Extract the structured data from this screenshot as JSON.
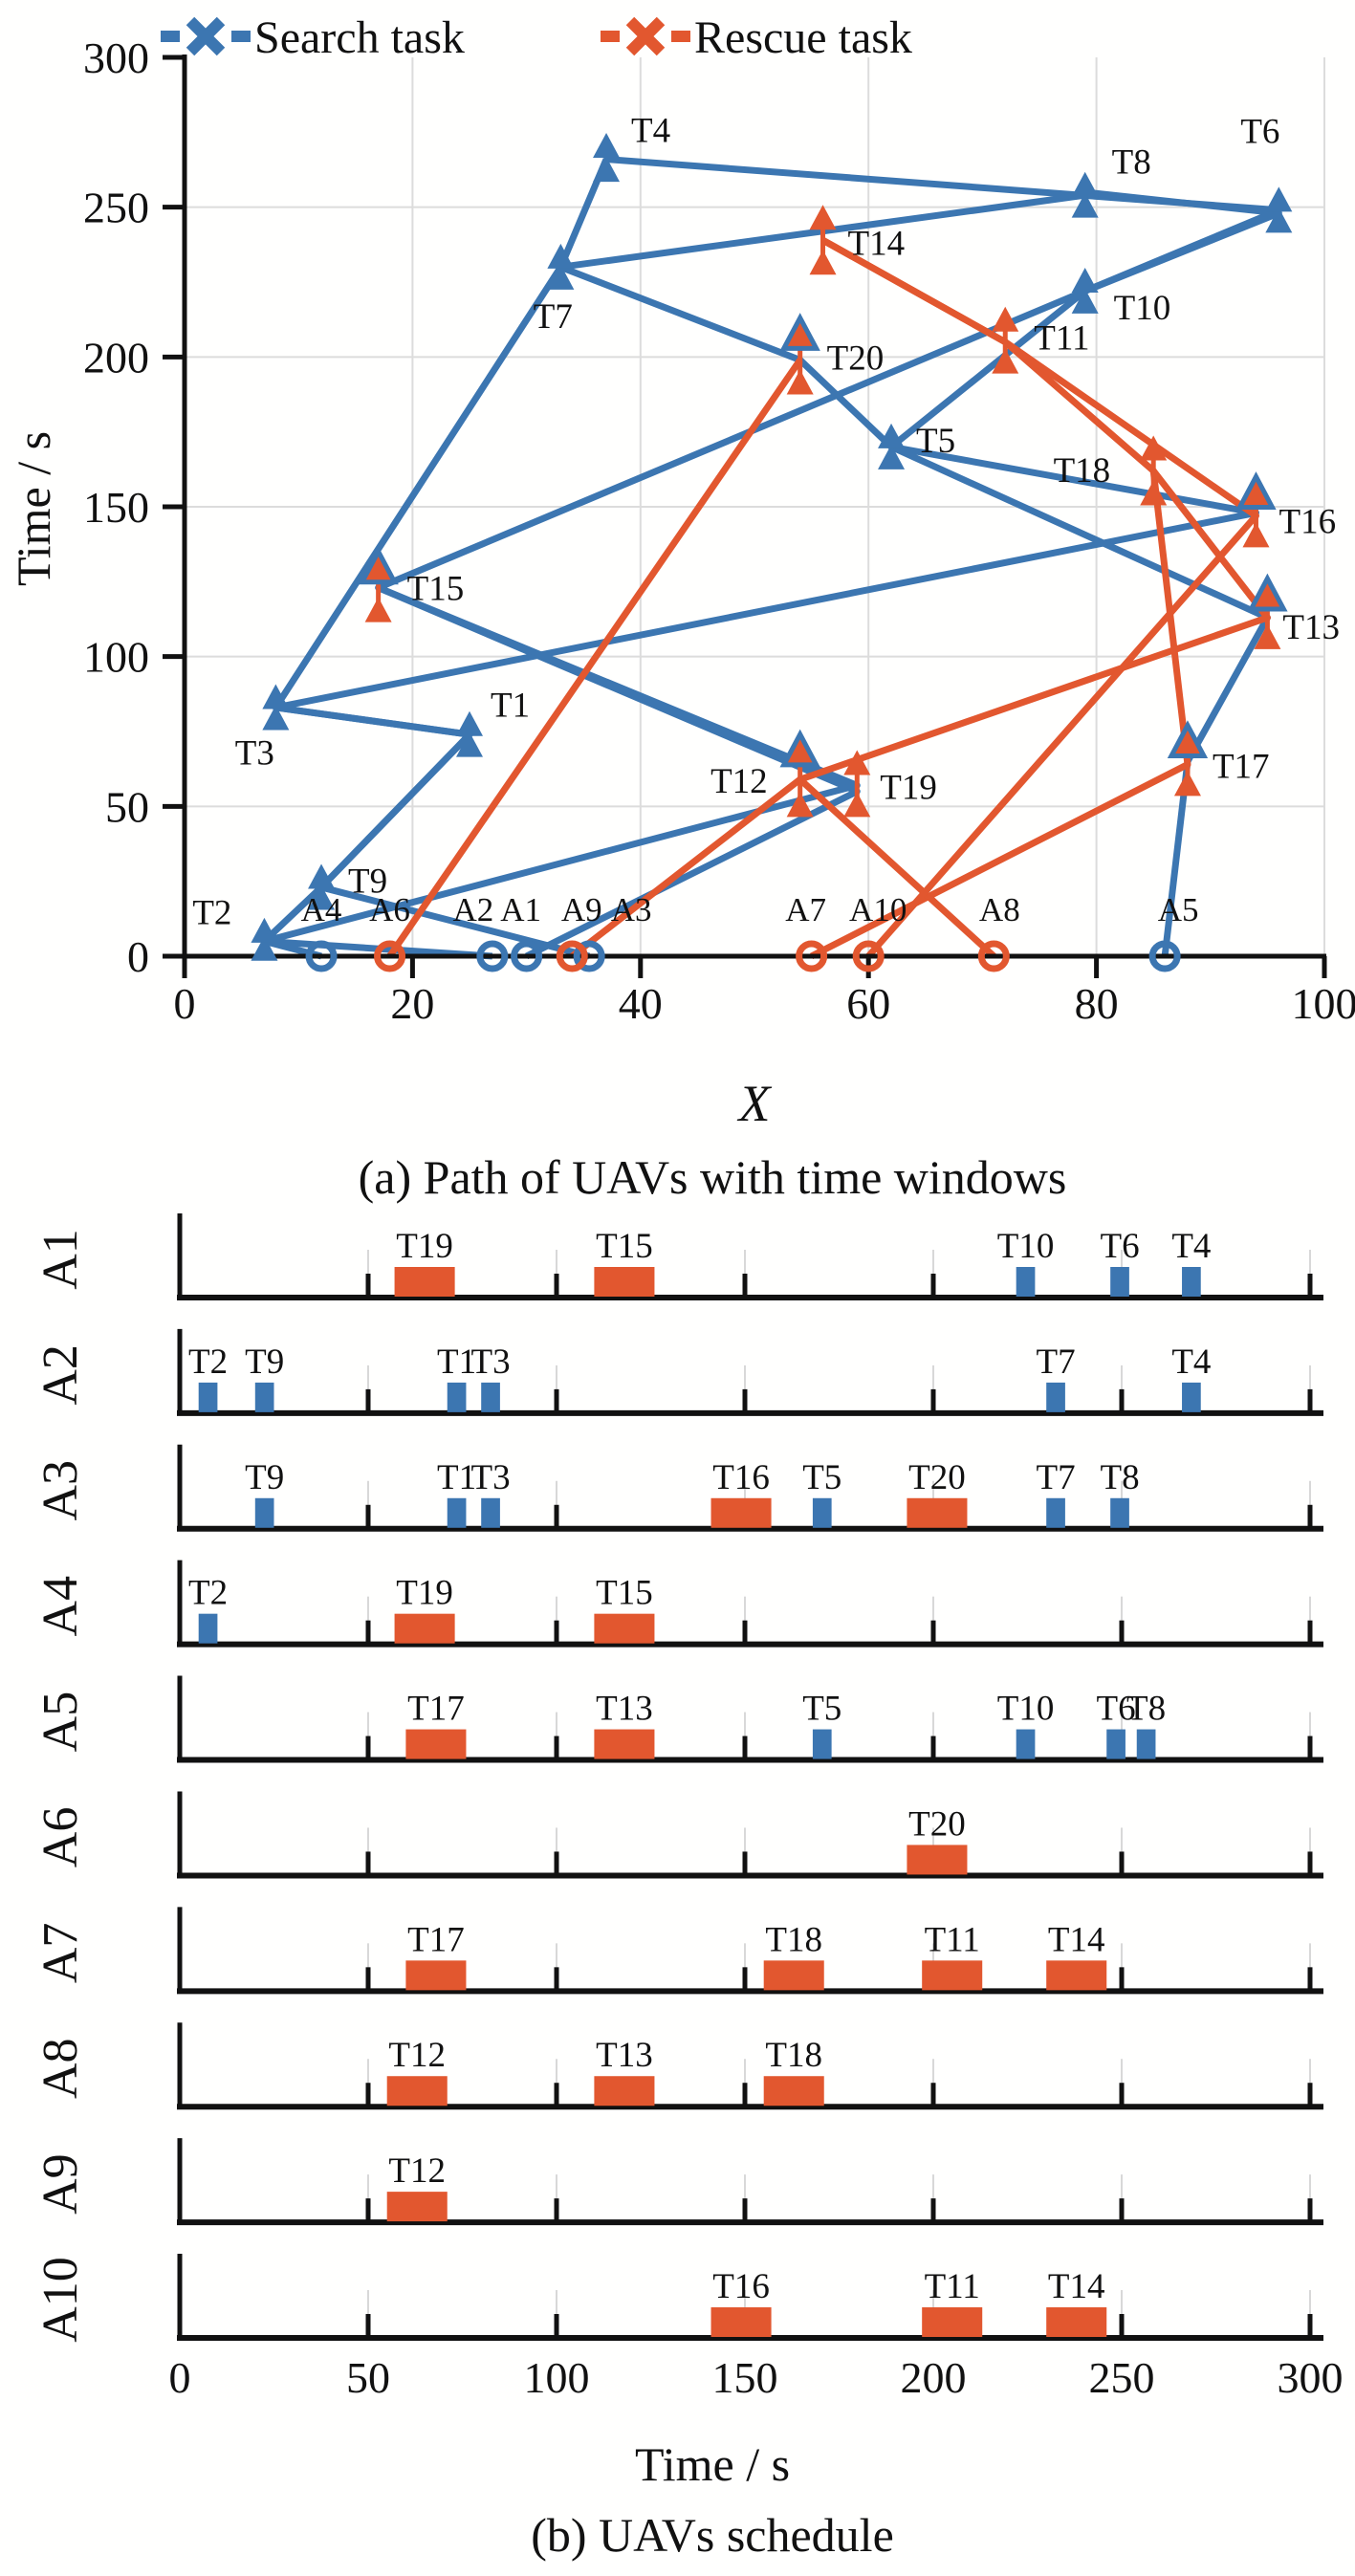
{
  "colors": {
    "search": "#3C76B1",
    "rescue": "#E2572F",
    "grid": "#DCDCDC",
    "tick_gray": "#D8D8D8",
    "axis": "#111111",
    "background": "#FFFFFE"
  },
  "figure": {
    "panel_a_caption": "(a) Path of UAVs with time windows",
    "panel_b_caption": "(b) UAVs schedule"
  },
  "chart_data": [
    {
      "type": "scatter",
      "title": "(a) Path of UAVs with time windows",
      "xlabel": "X",
      "ylabel": "Time / s",
      "xlim": [
        0,
        100
      ],
      "ylim": [
        0,
        300
      ],
      "xticks": [
        0,
        20,
        40,
        60,
        80,
        100
      ],
      "yticks": [
        0,
        50,
        100,
        150,
        200,
        250,
        300
      ],
      "grid": true,
      "legend_position": "top",
      "legend": [
        {
          "label": "Search task",
          "type": "search",
          "marker": "dash-x-dash"
        },
        {
          "label": "Rescue task",
          "type": "rescue",
          "marker": "dash-x-dash"
        }
      ],
      "task_marker": "triangle-pair-time-window",
      "agent_marker": "open-circle",
      "tasks": [
        {
          "id": "T1",
          "x": 25,
          "t1": 70,
          "t2": 77,
          "type": "search",
          "lx": 22,
          "ly": -20,
          "anchor": "start"
        },
        {
          "id": "T2",
          "x": 7,
          "t1": 2,
          "t2": 8,
          "type": "search",
          "lx": -34,
          "ly": -18,
          "anchor": "end"
        },
        {
          "id": "T3",
          "x": 8,
          "t1": 79,
          "t2": 86,
          "type": "search",
          "lx": -22,
          "ly": 58,
          "anchor": "middle"
        },
        {
          "id": "T4",
          "x": 37,
          "t1": 262,
          "t2": 270,
          "type": "search",
          "lx": 26,
          "ly": -18,
          "anchor": "start"
        },
        {
          "id": "T5",
          "x": 62,
          "t1": 166,
          "t2": 173,
          "type": "search",
          "lx": 26,
          "ly": 4,
          "anchor": "start"
        },
        {
          "id": "T6",
          "x": 96,
          "t1": 245,
          "t2": 252,
          "type": "search",
          "lx": -40,
          "ly": -72,
          "anchor": "start"
        },
        {
          "id": "T7",
          "x": 33,
          "t1": 226,
          "t2": 233,
          "type": "search",
          "lx": -8,
          "ly": 62,
          "anchor": "middle"
        },
        {
          "id": "T8",
          "x": 79,
          "t1": 250,
          "t2": 257,
          "type": "search",
          "lx": 28,
          "ly": -24,
          "anchor": "start"
        },
        {
          "id": "T9",
          "x": 12,
          "t1": 19,
          "t2": 26,
          "type": "search",
          "lx": 28,
          "ly": 4,
          "anchor": "start"
        },
        {
          "id": "T10",
          "x": 79,
          "t1": 218,
          "t2": 225,
          "type": "search",
          "lx": 30,
          "ly": 28,
          "anchor": "start"
        },
        {
          "id": "T11",
          "x": 72,
          "t1": 198,
          "t2": 212,
          "type": "rescue",
          "lx": 30,
          "ly": 8,
          "anchor": "start"
        },
        {
          "id": "T12",
          "x": 54,
          "t1": 50,
          "t2": 68,
          "type": "rescue",
          "dual": true,
          "lx": -34,
          "ly": 14,
          "anchor": "end"
        },
        {
          "id": "T13",
          "x": 95,
          "t1": 106,
          "t2": 120,
          "type": "rescue",
          "dual": true,
          "lx": 16,
          "ly": 22,
          "anchor": "start"
        },
        {
          "id": "T14",
          "x": 56,
          "t1": 231,
          "t2": 246,
          "type": "rescue",
          "lx": 26,
          "ly": 14,
          "anchor": "start"
        },
        {
          "id": "T15",
          "x": 17,
          "t1": 115,
          "t2": 129,
          "type": "rescue",
          "dual": true,
          "lx": 30,
          "ly": 10,
          "anchor": "start"
        },
        {
          "id": "T16",
          "x": 94,
          "t1": 140,
          "t2": 154,
          "type": "rescue",
          "dual": true,
          "lx": 24,
          "ly": 18,
          "anchor": "start"
        },
        {
          "id": "T17",
          "x": 88,
          "t1": 57,
          "t2": 71,
          "type": "rescue",
          "dual": true,
          "lx": 26,
          "ly": 14,
          "anchor": "start"
        },
        {
          "id": "T18",
          "x": 85,
          "t1": 154,
          "t2": 169,
          "type": "rescue",
          "lx": -45,
          "ly": 10,
          "anchor": "end"
        },
        {
          "id": "T19",
          "x": 59,
          "t1": 50,
          "t2": 64,
          "type": "rescue",
          "lx": 24,
          "ly": 14,
          "anchor": "start"
        },
        {
          "id": "T20",
          "x": 54,
          "t1": 191,
          "t2": 207,
          "type": "rescue",
          "dual": true,
          "lx": 28,
          "ly": 10,
          "anchor": "start"
        }
      ],
      "agents": [
        {
          "id": "A1",
          "x": 30,
          "type": "search",
          "lx": -6
        },
        {
          "id": "A2",
          "x": 27,
          "type": "search",
          "lx": -20
        },
        {
          "id": "A3",
          "x": 35.5,
          "type": "search",
          "lx": 44
        },
        {
          "id": "A4",
          "x": 12,
          "type": "search",
          "lx": 0
        },
        {
          "id": "A5",
          "x": 86,
          "type": "search",
          "lx": 14
        },
        {
          "id": "A6",
          "x": 18,
          "type": "rescue",
          "lx": 0
        },
        {
          "id": "A7",
          "x": 55,
          "type": "rescue",
          "lx": -6
        },
        {
          "id": "A8",
          "x": 71,
          "type": "rescue",
          "lx": 6
        },
        {
          "id": "A9",
          "x": 34,
          "type": "rescue",
          "lx": 10
        },
        {
          "id": "A10",
          "x": 60,
          "type": "rescue",
          "lx": 10
        }
      ],
      "paths": [
        {
          "agent": "A1",
          "type": "search",
          "points": [
            [
              30,
              0
            ],
            [
              59,
              55
            ],
            [
              17,
              123
            ],
            [
              79,
              222
            ],
            [
              96,
              249
            ],
            [
              37,
              266
            ]
          ]
        },
        {
          "agent": "A2",
          "type": "search",
          "points": [
            [
              27,
              0
            ],
            [
              7,
              5
            ],
            [
              12,
              23
            ],
            [
              25,
              74
            ],
            [
              8,
              83
            ],
            [
              33,
              230
            ],
            [
              37,
              266
            ]
          ]
        },
        {
          "agent": "A3",
          "type": "search",
          "points": [
            [
              35.5,
              0
            ],
            [
              12,
              23
            ],
            [
              25,
              74
            ],
            [
              8,
              83
            ],
            [
              94,
              148
            ],
            [
              62,
              170
            ],
            [
              54,
              199
            ],
            [
              33,
              230
            ],
            [
              79,
              254
            ]
          ]
        },
        {
          "agent": "A4",
          "type": "search",
          "points": [
            [
              12,
              0
            ],
            [
              7,
              5
            ],
            [
              59,
              57
            ],
            [
              17,
              123
            ]
          ]
        },
        {
          "agent": "A5",
          "type": "search",
          "points": [
            [
              86,
              0
            ],
            [
              88,
              65
            ],
            [
              95,
              113
            ],
            [
              62,
              170
            ],
            [
              79,
              222
            ],
            [
              96,
              248
            ],
            [
              79,
              255
            ]
          ]
        },
        {
          "agent": "A6",
          "type": "rescue",
          "points": [
            [
              18,
              0
            ],
            [
              54,
              199
            ]
          ]
        },
        {
          "agent": "A7",
          "type": "rescue",
          "points": [
            [
              55,
              0
            ],
            [
              88,
              64
            ],
            [
              85,
              162
            ],
            [
              72,
              205
            ],
            [
              56,
              239
            ]
          ]
        },
        {
          "agent": "A8",
          "type": "rescue",
          "points": [
            [
              71,
              0
            ],
            [
              54,
              59
            ],
            [
              95,
              113
            ],
            [
              85,
              162
            ]
          ]
        },
        {
          "agent": "A9",
          "type": "rescue",
          "points": [
            [
              34,
              0
            ],
            [
              54,
              59
            ]
          ]
        },
        {
          "agent": "A10",
          "type": "rescue",
          "points": [
            [
              60,
              0
            ],
            [
              94,
              147
            ],
            [
              72,
              205
            ],
            [
              56,
              239
            ]
          ]
        }
      ]
    },
    {
      "type": "gantt",
      "title": "(b) UAVs schedule",
      "xlabel": "Time / s",
      "xlim": [
        0,
        300
      ],
      "xticks": [
        0,
        50,
        100,
        150,
        200,
        250,
        300
      ],
      "rows": [
        {
          "agent": "A1",
          "bars": [
            {
              "task": "T19",
              "start": 57,
              "end": 73,
              "type": "rescue"
            },
            {
              "task": "T15",
              "start": 110,
              "end": 126,
              "type": "rescue"
            },
            {
              "task": "T10",
              "start": 222,
              "end": 227,
              "type": "search"
            },
            {
              "task": "T6",
              "start": 247,
              "end": 252,
              "type": "search"
            },
            {
              "task": "T4",
              "start": 266,
              "end": 271,
              "type": "search"
            }
          ]
        },
        {
          "agent": "A2",
          "bars": [
            {
              "task": "T2",
              "start": 5,
              "end": 10,
              "type": "search"
            },
            {
              "task": "T9",
              "start": 20,
              "end": 25,
              "type": "search"
            },
            {
              "task": "T1",
              "start": 71,
              "end": 76,
              "type": "search"
            },
            {
              "task": "T3",
              "start": 80,
              "end": 85,
              "type": "search"
            },
            {
              "task": "T7",
              "start": 230,
              "end": 235,
              "type": "search"
            },
            {
              "task": "T4",
              "start": 266,
              "end": 271,
              "type": "search"
            }
          ]
        },
        {
          "agent": "A3",
          "bars": [
            {
              "task": "T9",
              "start": 20,
              "end": 25,
              "type": "search"
            },
            {
              "task": "T1",
              "start": 71,
              "end": 76,
              "type": "search"
            },
            {
              "task": "T3",
              "start": 80,
              "end": 85,
              "type": "search"
            },
            {
              "task": "T16",
              "start": 141,
              "end": 157,
              "type": "rescue"
            },
            {
              "task": "T5",
              "start": 168,
              "end": 173,
              "type": "search"
            },
            {
              "task": "T20",
              "start": 193,
              "end": 209,
              "type": "rescue"
            },
            {
              "task": "T7",
              "start": 230,
              "end": 235,
              "type": "search"
            },
            {
              "task": "T8",
              "start": 247,
              "end": 252,
              "type": "search"
            }
          ]
        },
        {
          "agent": "A4",
          "bars": [
            {
              "task": "T2",
              "start": 5,
              "end": 10,
              "type": "search"
            },
            {
              "task": "T19",
              "start": 57,
              "end": 73,
              "type": "rescue"
            },
            {
              "task": "T15",
              "start": 110,
              "end": 126,
              "type": "rescue"
            }
          ]
        },
        {
          "agent": "A5",
          "bars": [
            {
              "task": "T17",
              "start": 60,
              "end": 76,
              "type": "rescue"
            },
            {
              "task": "T13",
              "start": 110,
              "end": 126,
              "type": "rescue"
            },
            {
              "task": "T5",
              "start": 168,
              "end": 173,
              "type": "search"
            },
            {
              "task": "T10",
              "start": 222,
              "end": 227,
              "type": "search"
            },
            {
              "task": "T6",
              "start": 246,
              "end": 251,
              "type": "search"
            },
            {
              "task": "T8",
              "start": 254,
              "end": 259,
              "type": "search"
            }
          ]
        },
        {
          "agent": "A6",
          "bars": [
            {
              "task": "T20",
              "start": 193,
              "end": 209,
              "type": "rescue"
            }
          ]
        },
        {
          "agent": "A7",
          "bars": [
            {
              "task": "T17",
              "start": 60,
              "end": 76,
              "type": "rescue"
            },
            {
              "task": "T18",
              "start": 155,
              "end": 171,
              "type": "rescue"
            },
            {
              "task": "T11",
              "start": 197,
              "end": 213,
              "type": "rescue"
            },
            {
              "task": "T14",
              "start": 230,
              "end": 246,
              "type": "rescue"
            }
          ]
        },
        {
          "agent": "A8",
          "bars": [
            {
              "task": "T12",
              "start": 55,
              "end": 71,
              "type": "rescue"
            },
            {
              "task": "T13",
              "start": 110,
              "end": 126,
              "type": "rescue"
            },
            {
              "task": "T18",
              "start": 155,
              "end": 171,
              "type": "rescue"
            }
          ]
        },
        {
          "agent": "A9",
          "bars": [
            {
              "task": "T12",
              "start": 55,
              "end": 71,
              "type": "rescue"
            }
          ]
        },
        {
          "agent": "A10",
          "bars": [
            {
              "task": "T16",
              "start": 141,
              "end": 157,
              "type": "rescue"
            },
            {
              "task": "T11",
              "start": 197,
              "end": 213,
              "type": "rescue"
            },
            {
              "task": "T14",
              "start": 230,
              "end": 246,
              "type": "rescue"
            }
          ]
        }
      ]
    }
  ]
}
